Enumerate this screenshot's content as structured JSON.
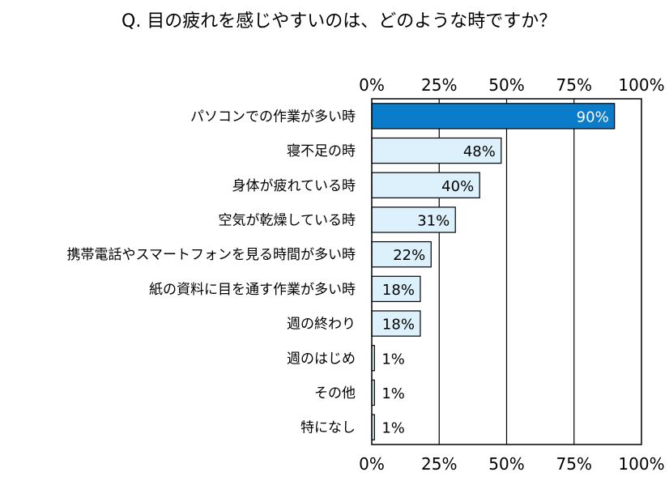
{
  "chart_data": {
    "type": "bar",
    "orientation": "horizontal",
    "title": "Q. 目の疲れを感じやすいのは、どのような時ですか？",
    "categories": [
      "パソコンでの作業が多い時",
      "寝不足の時",
      "身体が疲れている時",
      "空気が乾燥している時",
      "携帯電話やスマートフォンを見る時間が多い時",
      "紙の資料に目を通す作業が多い時",
      "週の終わり",
      "週のはじめ",
      "その他",
      "特になし"
    ],
    "values": [
      90,
      48,
      40,
      31,
      22,
      18,
      18,
      1,
      1,
      1
    ],
    "value_labels": [
      "90%",
      "48%",
      "40%",
      "31%",
      "22%",
      "18%",
      "18%",
      "1%",
      "1%",
      "1%"
    ],
    "xlim": [
      0,
      100
    ],
    "ticks": [
      0,
      25,
      50,
      75,
      100
    ],
    "tick_labels": [
      "0%",
      "25%",
      "50%",
      "75%",
      "100%"
    ],
    "tick_labels_position": "top-and-bottom",
    "grid": true,
    "legend": "none",
    "colors": {
      "highlight_bar": "#0A7CC9",
      "bar": "#DDF1FC",
      "bar_stroke": "#000000",
      "gridline": "#000000",
      "highlight_label": "#FFFFFF"
    }
  }
}
